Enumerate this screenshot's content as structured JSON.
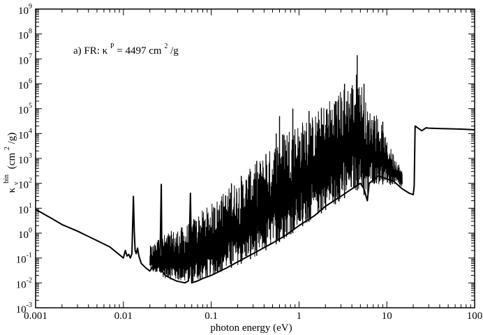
{
  "chart_data": {
    "type": "line",
    "xscale": "log",
    "yscale": "log",
    "xlim": [
      0.001,
      100
    ],
    "ylim": [
      0.001,
      1000000000
    ],
    "xlabel": "photon energy (eV)",
    "ylabel": {
      "base": "κ",
      "sub": "ν",
      "sup": "bin",
      "unit": "(cm",
      "unit_sup": "2",
      "unit_end": "/g)"
    },
    "xticks": [
      {
        "value": 0.001,
        "label": "0.001"
      },
      {
        "value": 0.01,
        "label": "0.01"
      },
      {
        "value": 0.1,
        "label": "0.1"
      },
      {
        "value": 1,
        "label": "1"
      },
      {
        "value": 10,
        "label": "10"
      },
      {
        "value": 100,
        "label": "100"
      }
    ],
    "yticks": [
      {
        "value": 0.001,
        "base": "10",
        "exp": "-3"
      },
      {
        "value": 0.01,
        "base": "10",
        "exp": "-2"
      },
      {
        "value": 0.1,
        "base": "10",
        "exp": "-1"
      },
      {
        "value": 1,
        "base": "10",
        "exp": "0"
      },
      {
        "value": 10,
        "base": "10",
        "exp": "1"
      },
      {
        "value": 100,
        "base": "10",
        "exp": "2"
      },
      {
        "value": 1000,
        "base": "10",
        "exp": "3"
      },
      {
        "value": 10000,
        "base": "10",
        "exp": "4"
      },
      {
        "value": 100000,
        "base": "10",
        "exp": "5"
      },
      {
        "value": 1000000,
        "base": "10",
        "exp": "6"
      },
      {
        "value": 10000000,
        "base": "10",
        "exp": "7"
      },
      {
        "value": 100000000,
        "base": "10",
        "exp": "8"
      },
      {
        "value": 1000000000,
        "base": "10",
        "exp": "9"
      }
    ],
    "annotation": {
      "pre": "a) FR: κ",
      "sup": "P",
      "mid": " = 4497 cm",
      "sup2": "2",
      "post": "/g"
    },
    "grid": false,
    "series": [
      {
        "values": [
          [
            0.001,
            9.0
          ],
          [
            0.0015,
            4.0
          ],
          [
            0.002,
            2.2
          ],
          [
            0.003,
            1.2
          ],
          [
            0.005,
            0.5
          ],
          [
            0.007,
            0.28
          ],
          [
            0.01,
            0.1
          ],
          [
            0.0105,
            0.2
          ],
          [
            0.011,
            0.12
          ],
          [
            0.0115,
            0.14
          ],
          [
            0.012,
            0.1
          ],
          [
            0.0125,
            0.15
          ],
          [
            0.013,
            30
          ],
          [
            0.0133,
            1.2
          ],
          [
            0.0136,
            0.2
          ],
          [
            0.014,
            0.15
          ],
          [
            0.0145,
            0.25
          ],
          [
            0.015,
            0.12
          ],
          [
            0.016,
            0.06
          ],
          [
            0.018,
            0.04
          ],
          [
            0.02,
            0.03
          ],
          [
            0.022,
            0.05
          ],
          [
            0.023,
            0.3
          ],
          [
            0.024,
            0.03
          ],
          [
            0.025,
            0.5
          ],
          [
            0.026,
            0.03
          ],
          [
            0.027,
            90
          ],
          [
            0.0275,
            0.03
          ],
          [
            0.03,
            0.02
          ],
          [
            0.035,
            0.015
          ],
          [
            0.04,
            0.012
          ],
          [
            0.05,
            0.01
          ],
          [
            0.055,
            0.012
          ],
          [
            0.058,
            40
          ],
          [
            0.06,
            0.01
          ],
          [
            0.07,
            0.012
          ],
          [
            0.08,
            0.015
          ],
          [
            0.1,
            0.02
          ],
          [
            0.15,
            0.04
          ],
          [
            0.2,
            0.07
          ],
          [
            0.3,
            0.15
          ],
          [
            0.5,
            0.4
          ],
          [
            0.7,
            0.8
          ],
          [
            1.0,
            2.0
          ],
          [
            1.5,
            5.0
          ],
          [
            2.0,
            12
          ],
          [
            3.0,
            30
          ],
          [
            4.0,
            60
          ],
          [
            5.0,
            100
          ],
          [
            5.5,
            60
          ],
          [
            6.0,
            20
          ],
          [
            6.3,
            100
          ],
          [
            8.0,
            200
          ],
          [
            10,
            150
          ],
          [
            12,
            120
          ],
          [
            15,
            60
          ],
          [
            18,
            40
          ],
          [
            20,
            35
          ],
          [
            20.5,
            80
          ],
          [
            21,
            20000
          ],
          [
            25,
            13000
          ],
          [
            28,
            17000
          ],
          [
            30,
            16500
          ],
          [
            50,
            15500
          ],
          [
            70,
            15000
          ],
          [
            90,
            14500
          ],
          [
            100,
            14000
          ]
        ]
      }
    ],
    "envelope": {
      "low": [
        [
          0.02,
          0.03
        ],
        [
          0.03,
          0.015
        ],
        [
          0.05,
          0.01
        ],
        [
          0.07,
          0.012
        ],
        [
          0.1,
          0.02
        ],
        [
          0.2,
          0.05
        ],
        [
          0.3,
          0.1
        ],
        [
          0.5,
          0.3
        ],
        [
          0.7,
          0.6
        ],
        [
          1.0,
          1.5
        ],
        [
          1.5,
          4
        ],
        [
          2.0,
          8
        ],
        [
          3.0,
          20
        ],
        [
          4.0,
          40
        ],
        [
          5.0,
          60
        ],
        [
          6.0,
          20
        ],
        [
          6.5,
          100
        ],
        [
          8.0,
          90
        ],
        [
          10,
          90
        ],
        [
          13,
          80
        ],
        [
          15,
          60
        ]
      ],
      "high": [
        [
          0.02,
          0.3
        ],
        [
          0.03,
          1.0
        ],
        [
          0.05,
          2.0
        ],
        [
          0.07,
          6.0
        ],
        [
          0.1,
          15
        ],
        [
          0.15,
          60
        ],
        [
          0.2,
          150
        ],
        [
          0.3,
          500
        ],
        [
          0.5,
          3000
        ],
        [
          0.7,
          20000
        ],
        [
          1.0,
          30000
        ],
        [
          1.5,
          60000
        ],
        [
          2.0,
          200000
        ],
        [
          3.0,
          600000
        ],
        [
          4.0,
          1500000
        ],
        [
          4.5,
          3000000
        ],
        [
          5.0,
          2000000
        ],
        [
          6.0,
          100000
        ],
        [
          8.0,
          60000
        ],
        [
          10,
          5000
        ],
        [
          13,
          1000
        ],
        [
          15,
          300
        ]
      ]
    },
    "spikes": [
      [
        0.062,
        2
      ],
      [
        0.075,
        1
      ],
      [
        0.09,
        3
      ],
      [
        0.11,
        10
      ],
      [
        0.13,
        20
      ],
      [
        0.17,
        100
      ],
      [
        0.22,
        200
      ],
      [
        0.28,
        300
      ],
      [
        0.33,
        800
      ],
      [
        0.42,
        1500
      ],
      [
        0.55,
        10000
      ],
      [
        0.6,
        50000
      ],
      [
        0.85,
        100000
      ],
      [
        1.1,
        20000
      ],
      [
        1.3,
        80000
      ],
      [
        1.8,
        100000
      ],
      [
        2.6,
        200000
      ],
      [
        3.3,
        1000000
      ],
      [
        4.6,
        14000000
      ],
      [
        5.5,
        1000000
      ],
      [
        7.2,
        50000
      ],
      [
        9.0,
        30000
      ],
      [
        11,
        1000
      ]
    ]
  }
}
